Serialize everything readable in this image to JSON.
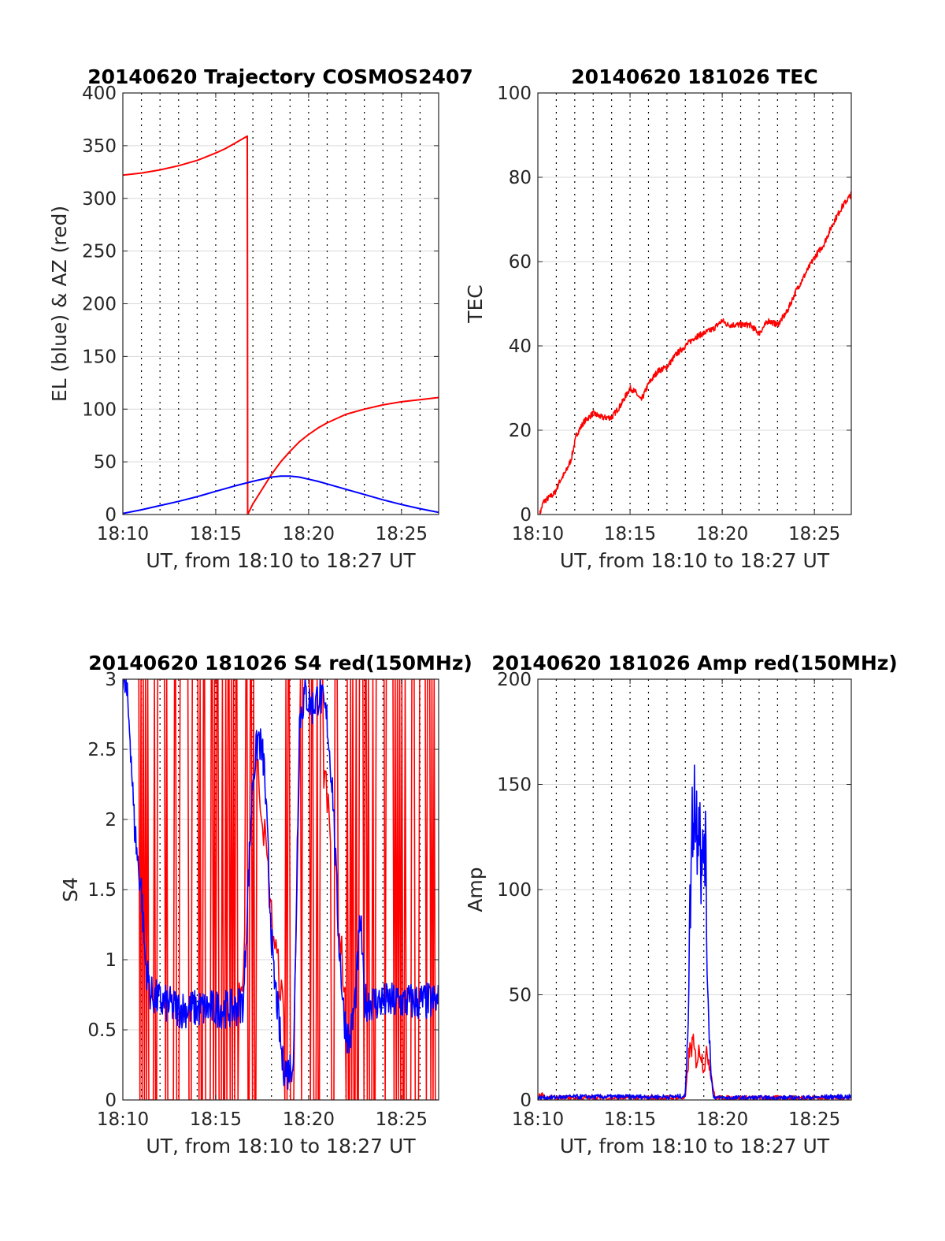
{
  "colors": {
    "red": "#ff0000",
    "blue": "#0000ff",
    "grid_major": "#d9d9d9",
    "grid_minor": "#000000",
    "axes": "#262626"
  },
  "chart_data": [
    {
      "type": "line",
      "title": "20140620 Trajectory COSMOS2407",
      "xlabel": "UT, from 18:10 to 18:27 UT",
      "ylabel": "EL (blue) & AZ (red)",
      "xlim": [
        0,
        17
      ],
      "ylim": [
        0,
        400
      ],
      "x_ticks": [
        0,
        5,
        10,
        15
      ],
      "x_tick_labels": [
        "18:10",
        "18:15",
        "18:20",
        "18:25"
      ],
      "y_ticks": [
        0,
        50,
        100,
        150,
        200,
        250,
        300,
        350,
        400
      ],
      "y_tick_labels": [
        "0",
        "50",
        "100",
        "150",
        "200",
        "250",
        "300",
        "350",
        "400"
      ],
      "minor_x_step": 1,
      "grid": true,
      "series": [
        {
          "color": "red",
          "x": [
            0,
            1,
            2,
            3,
            4,
            5,
            5.5,
            6,
            6.7,
            6.71,
            6.72,
            7,
            7.5,
            8,
            8.5,
            9,
            9.5,
            10,
            10.5,
            11,
            12,
            13,
            14,
            15,
            16,
            17
          ],
          "y": [
            322,
            324,
            327,
            331,
            336,
            343,
            347,
            352,
            359,
            200,
            0,
            10,
            24,
            38,
            50,
            60,
            69,
            76,
            82,
            87,
            95,
            100,
            104,
            107,
            109,
            111
          ]
        },
        {
          "color": "blue",
          "x": [
            0,
            1,
            2,
            3,
            4,
            5,
            6,
            7,
            8,
            8.5,
            9,
            9.5,
            10,
            10.5,
            11,
            12,
            13,
            14,
            15,
            16,
            17
          ],
          "y": [
            1,
            4.5,
            8.5,
            12.5,
            17,
            22,
            27,
            31.5,
            35.5,
            36.5,
            36.5,
            35.5,
            33.5,
            31.5,
            29,
            24,
            19,
            14,
            9.5,
            5.5,
            2
          ]
        }
      ]
    },
    {
      "type": "line",
      "title": "20140620 181026 TEC",
      "xlabel": "UT, from 18:10 to 18:27 UT",
      "ylabel": "TEC",
      "xlim": [
        0,
        17
      ],
      "ylim": [
        0,
        100
      ],
      "x_ticks": [
        0,
        5,
        10,
        15
      ],
      "x_tick_labels": [
        "18:10",
        "18:15",
        "18:20",
        "18:25"
      ],
      "y_ticks": [
        0,
        20,
        40,
        60,
        80,
        100
      ],
      "y_tick_labels": [
        "0",
        "20",
        "40",
        "60",
        "80",
        "100"
      ],
      "minor_x_step": 1,
      "grid": true,
      "series": [
        {
          "color": "red",
          "x": [
            0.1,
            0.3,
            0.6,
            0.9,
            1.2,
            1.5,
            1.8,
            2.1,
            2.5,
            3.0,
            3.5,
            4.0,
            4.5,
            5.0,
            5.3,
            5.6,
            6.0,
            6.5,
            7.0,
            7.5,
            8.0,
            8.5,
            9.0,
            9.5,
            10.0,
            10.3,
            10.6,
            11.0,
            11.5,
            12.0,
            12.5,
            13.0,
            13.5,
            14.0,
            14.5,
            15.0,
            15.5,
            16.0,
            16.5,
            17.0
          ],
          "y": [
            0,
            3,
            4,
            5,
            8,
            10,
            13,
            19,
            22,
            24,
            23,
            23,
            26,
            30,
            29,
            27,
            31,
            34,
            35,
            38,
            40,
            42,
            43,
            44,
            46,
            45,
            45,
            45,
            45,
            43,
            46,
            45,
            48,
            53,
            57,
            61,
            64,
            69,
            73,
            76
          ]
        }
      ]
    },
    {
      "type": "line",
      "title": "20140620 181026 S4 red(150MHz)",
      "xlabel": "UT, from 18:10 to 18:27 UT",
      "ylabel": "S4",
      "xlim": [
        0,
        17
      ],
      "ylim": [
        0,
        3
      ],
      "x_ticks": [
        0,
        5,
        10,
        15
      ],
      "x_tick_labels": [
        "18:10",
        "18:15",
        "18:20",
        "18:25"
      ],
      "y_ticks": [
        0,
        0.5,
        1,
        1.5,
        2,
        2.5,
        3
      ],
      "y_tick_labels": [
        "0",
        "0.5",
        "1",
        "1.5",
        "2",
        "2.5",
        "3"
      ],
      "minor_x_step": 1,
      "grid": true,
      "series": [
        {
          "color": "red",
          "x": [
            0,
            0.5,
            0.8,
            1.2,
            2,
            3,
            4,
            5,
            6,
            6.5,
            6.9,
            7.3,
            7.7,
            8,
            8.5,
            8.8,
            9.2,
            9.6,
            10,
            10.5,
            11,
            12,
            13,
            14,
            15,
            16,
            17
          ],
          "y": [
            2.2,
            1.6,
            1.5,
            1.2,
            0.9,
            0.8,
            0.8,
            0.8,
            0.8,
            0.8,
            2.8,
            2.3,
            1.8,
            1.3,
            0.8,
            0.4,
            0.3,
            2.9,
            2.8,
            2.6,
            2.2,
            0.7,
            0.7,
            0.7,
            0.7,
            0.7,
            0.7
          ],
          "band": [
            0,
            3
          ]
        },
        {
          "color": "blue",
          "x": [
            0,
            0.2,
            0.4,
            0.6,
            0.8,
            1.0,
            1.2,
            1.5,
            2,
            3,
            4,
            5,
            6,
            6.5,
            6.7,
            7.0,
            7.3,
            7.6,
            7.9,
            8.1,
            8.3,
            8.6,
            8.9,
            9.2,
            9.5,
            9.8,
            10.2,
            10.6,
            11.0,
            11.3,
            11.6,
            11.9,
            12.2,
            12.5,
            12.8,
            13,
            14,
            15,
            16,
            17
          ],
          "y": [
            3,
            2.9,
            2.6,
            2.0,
            1.7,
            1.5,
            1.0,
            0.75,
            0.7,
            0.65,
            0.65,
            0.65,
            0.65,
            0.7,
            1.4,
            2.3,
            2.6,
            2.4,
            1.5,
            0.9,
            0.7,
            0.25,
            0.2,
            0.3,
            2.7,
            2.9,
            2.8,
            2.9,
            2.7,
            2.2,
            1.2,
            0.6,
            0.4,
            0.7,
            1.3,
            0.7,
            0.7,
            0.7,
            0.7,
            0.7
          ]
        }
      ]
    },
    {
      "type": "line",
      "title": "20140620 181026 Amp red(150MHz)",
      "xlabel": "UT, from 18:10 to 18:27 UT",
      "ylabel": "Amp",
      "xlim": [
        0,
        17
      ],
      "ylim": [
        0,
        200
      ],
      "x_ticks": [
        0,
        5,
        10,
        15
      ],
      "x_tick_labels": [
        "18:10",
        "18:15",
        "18:20",
        "18:25"
      ],
      "y_ticks": [
        0,
        50,
        100,
        150,
        200
      ],
      "y_tick_labels": [
        "0",
        "50",
        "100",
        "150",
        "200"
      ],
      "minor_x_step": 1,
      "grid": true,
      "series": [
        {
          "color": "red",
          "x": [
            0,
            0.2,
            0.4,
            2,
            4,
            6,
            8,
            8.2,
            8.4,
            8.6,
            8.8,
            9.0,
            9.2,
            9.4,
            9.6,
            10,
            12,
            14,
            16,
            17
          ],
          "y": [
            1,
            3,
            1,
            1,
            1,
            1,
            1,
            22,
            27,
            18,
            25,
            15,
            23,
            12,
            1,
            1,
            1,
            1,
            1,
            1
          ]
        },
        {
          "color": "blue",
          "x": [
            0,
            2,
            4,
            6,
            7.5,
            8.0,
            8.15,
            8.3,
            8.45,
            8.6,
            8.75,
            8.9,
            9.05,
            9.2,
            9.35,
            9.5,
            9.7,
            10,
            12,
            14,
            16,
            17
          ],
          "y": [
            1,
            1.5,
            1.5,
            1.5,
            1.5,
            2,
            40,
            110,
            150,
            130,
            150,
            100,
            135,
            60,
            20,
            2,
            1,
            1,
            1,
            1,
            1.5,
            1.5
          ]
        }
      ]
    }
  ]
}
